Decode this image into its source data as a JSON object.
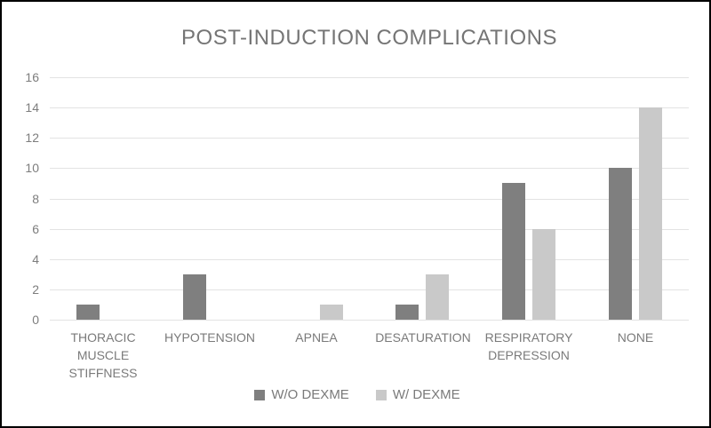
{
  "chart_data": {
    "type": "bar",
    "title": "POST-INDUCTION COMPLICATIONS",
    "categories": [
      "THORACIC MUSCLE STIFFNESS",
      "HYPOTENSION",
      "APNEA",
      "DESATURATION",
      "RESPIRATORY DEPRESSION",
      "NONE"
    ],
    "series": [
      {
        "name": "W/O DEXME",
        "color": "#7f7f7f",
        "values": [
          1,
          3,
          0,
          1,
          9,
          10
        ]
      },
      {
        "name": "W/ DEXME",
        "color": "#c9c9c9",
        "values": [
          0,
          0,
          1,
          3,
          6,
          14
        ]
      }
    ],
    "xlabel": "",
    "ylabel": "",
    "ylim": [
      0,
      16
    ],
    "yticks": [
      0,
      2,
      4,
      6,
      8,
      10,
      12,
      14,
      16
    ],
    "grid": true,
    "legend_position": "bottom",
    "colors": {
      "title_text": "#757575",
      "axis_text": "#7d7d7d",
      "category_text": "#7a7a7a",
      "gridline": "#e3e3e3",
      "frame_border": "#000000",
      "background": "#ffffff"
    }
  }
}
